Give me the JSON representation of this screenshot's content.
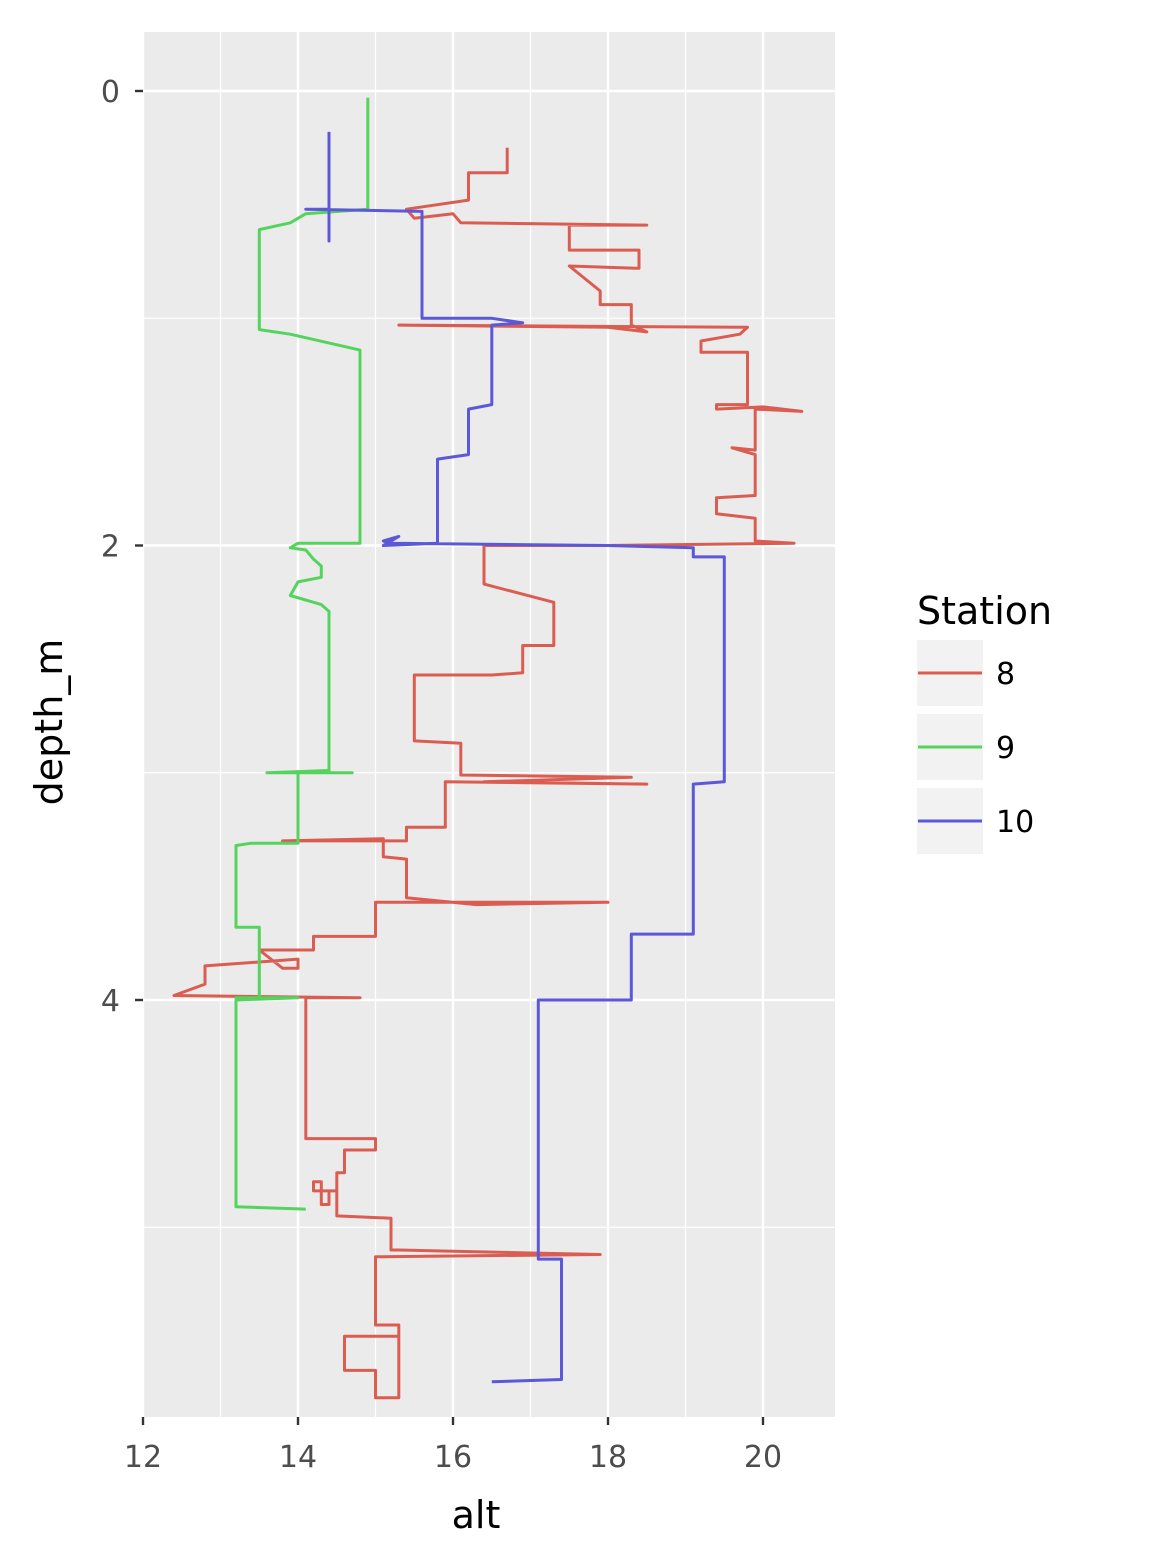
{
  "chart_data": {
    "type": "line",
    "xlabel": "alt",
    "ylabel": "depth_m",
    "xlim": [
      12,
      21
    ],
    "ylim": [
      0,
      5.8
    ],
    "y_reversed": true,
    "x_ticks": [
      12,
      14,
      16,
      18,
      20
    ],
    "y_ticks": [
      0,
      2,
      4
    ],
    "grid": true,
    "legend": {
      "title": "Station",
      "position": "right"
    },
    "series": [
      {
        "name": "8",
        "color": "#db5d52",
        "points": [
          [
            16.7,
            0.25
          ],
          [
            16.7,
            0.36
          ],
          [
            16.2,
            0.36
          ],
          [
            16.2,
            0.48
          ],
          [
            15.4,
            0.52
          ],
          [
            15.5,
            0.56
          ],
          [
            16.0,
            0.54
          ],
          [
            16.1,
            0.58
          ],
          [
            18.5,
            0.59
          ],
          [
            17.5,
            0.59
          ],
          [
            17.5,
            0.7
          ],
          [
            18.4,
            0.7
          ],
          [
            18.4,
            0.78
          ],
          [
            17.5,
            0.77
          ],
          [
            17.9,
            0.88
          ],
          [
            17.9,
            0.94
          ],
          [
            18.3,
            0.94
          ],
          [
            18.3,
            1.03
          ],
          [
            18.5,
            1.06
          ],
          [
            18.0,
            1.04
          ],
          [
            15.3,
            1.03
          ],
          [
            19.8,
            1.04
          ],
          [
            19.7,
            1.07
          ],
          [
            19.2,
            1.1
          ],
          [
            19.2,
            1.15
          ],
          [
            19.8,
            1.15
          ],
          [
            19.8,
            1.38
          ],
          [
            19.4,
            1.38
          ],
          [
            19.4,
            1.4
          ],
          [
            20.0,
            1.39
          ],
          [
            20.5,
            1.41
          ],
          [
            19.9,
            1.4
          ],
          [
            19.9,
            1.58
          ],
          [
            19.6,
            1.57
          ],
          [
            19.9,
            1.6
          ],
          [
            19.9,
            1.78
          ],
          [
            19.4,
            1.79
          ],
          [
            19.4,
            1.86
          ],
          [
            19.9,
            1.88
          ],
          [
            19.9,
            1.98
          ],
          [
            20.4,
            1.99
          ],
          [
            18.0,
            2.0
          ],
          [
            16.4,
            2.0
          ],
          [
            16.4,
            2.17
          ],
          [
            17.3,
            2.25
          ],
          [
            17.3,
            2.44
          ],
          [
            16.9,
            2.44
          ],
          [
            16.9,
            2.56
          ],
          [
            16.5,
            2.57
          ],
          [
            15.5,
            2.57
          ],
          [
            15.5,
            2.86
          ],
          [
            16.1,
            2.87
          ],
          [
            16.1,
            3.01
          ],
          [
            18.3,
            3.02
          ],
          [
            16.4,
            3.04
          ],
          [
            18.5,
            3.05
          ],
          [
            15.9,
            3.04
          ],
          [
            15.9,
            3.24
          ],
          [
            15.4,
            3.24
          ],
          [
            15.4,
            3.3
          ],
          [
            13.8,
            3.3
          ],
          [
            15.1,
            3.29
          ],
          [
            15.1,
            3.37
          ],
          [
            15.4,
            3.38
          ],
          [
            15.4,
            3.55
          ],
          [
            16.3,
            3.58
          ],
          [
            18.0,
            3.57
          ],
          [
            15.0,
            3.57
          ],
          [
            15.0,
            3.72
          ],
          [
            14.2,
            3.72
          ],
          [
            14.2,
            3.78
          ],
          [
            13.5,
            3.78
          ],
          [
            13.8,
            3.86
          ],
          [
            14.0,
            3.86
          ],
          [
            14.0,
            3.82
          ],
          [
            12.8,
            3.85
          ],
          [
            12.8,
            3.93
          ],
          [
            12.4,
            3.98
          ],
          [
            14.8,
            3.99
          ],
          [
            14.1,
            3.99
          ],
          [
            14.1,
            4.61
          ],
          [
            15.0,
            4.61
          ],
          [
            15.0,
            4.66
          ],
          [
            14.6,
            4.66
          ],
          [
            14.6,
            4.76
          ],
          [
            14.5,
            4.76
          ],
          [
            14.5,
            4.84
          ],
          [
            14.4,
            4.84
          ],
          [
            14.4,
            4.9
          ],
          [
            14.3,
            4.9
          ],
          [
            14.3,
            4.8
          ],
          [
            14.2,
            4.8
          ],
          [
            14.2,
            4.84
          ],
          [
            14.5,
            4.84
          ],
          [
            14.5,
            4.95
          ],
          [
            15.2,
            4.96
          ],
          [
            15.2,
            5.1
          ],
          [
            15.3,
            5.1
          ],
          [
            17.9,
            5.12
          ],
          [
            15.0,
            5.13
          ],
          [
            15.0,
            5.43
          ],
          [
            15.3,
            5.43
          ],
          [
            15.3,
            5.48
          ],
          [
            14.6,
            5.48
          ],
          [
            14.6,
            5.63
          ],
          [
            15.0,
            5.63
          ],
          [
            15.0,
            5.75
          ],
          [
            15.3,
            5.75
          ],
          [
            15.3,
            5.48
          ]
        ]
      },
      {
        "name": "9",
        "color": "#55d45d",
        "points": [
          [
            14.9,
            0.03
          ],
          [
            14.9,
            0.52
          ],
          [
            14.1,
            0.54
          ],
          [
            13.9,
            0.58
          ],
          [
            13.5,
            0.61
          ],
          [
            13.5,
            1.05
          ],
          [
            13.9,
            1.07
          ],
          [
            14.8,
            1.14
          ],
          [
            14.8,
            1.99
          ],
          [
            14.0,
            1.99
          ],
          [
            13.9,
            2.01
          ],
          [
            14.1,
            2.02
          ],
          [
            14.2,
            2.06
          ],
          [
            14.3,
            2.09
          ],
          [
            14.3,
            2.14
          ],
          [
            14.0,
            2.16
          ],
          [
            13.9,
            2.22
          ],
          [
            14.3,
            2.26
          ],
          [
            14.4,
            2.29
          ],
          [
            14.4,
            2.99
          ],
          [
            13.6,
            3.0
          ],
          [
            14.7,
            3.0
          ],
          [
            14.0,
            3.0
          ],
          [
            14.0,
            3.31
          ],
          [
            13.4,
            3.31
          ],
          [
            13.2,
            3.32
          ],
          [
            13.2,
            3.68
          ],
          [
            13.5,
            3.68
          ],
          [
            13.5,
            3.99
          ],
          [
            13.2,
            3.99
          ],
          [
            14.0,
            3.99
          ],
          [
            13.2,
            4.0
          ],
          [
            13.2,
            4.91
          ],
          [
            14.1,
            4.92
          ]
        ]
      },
      {
        "name": "10",
        "color": "#5c58d8",
        "points": [
          [
            14.4,
            0.18
          ],
          [
            14.4,
            0.66
          ],
          [
            14.4,
            0.52
          ],
          [
            14.1,
            0.52
          ],
          [
            15.6,
            0.53
          ],
          [
            15.6,
            1.0
          ],
          [
            16.5,
            1.0
          ],
          [
            16.9,
            1.02
          ],
          [
            16.5,
            1.03
          ],
          [
            16.5,
            1.38
          ],
          [
            16.2,
            1.4
          ],
          [
            16.2,
            1.6
          ],
          [
            15.8,
            1.62
          ],
          [
            15.8,
            1.99
          ],
          [
            15.1,
            2.0
          ],
          [
            15.3,
            1.96
          ],
          [
            15.1,
            1.98
          ],
          [
            15.2,
            1.99
          ],
          [
            18.0,
            2.0
          ],
          [
            19.1,
            2.01
          ],
          [
            19.1,
            2.05
          ],
          [
            19.5,
            2.05
          ],
          [
            19.5,
            3.04
          ],
          [
            19.1,
            3.05
          ],
          [
            19.1,
            3.71
          ],
          [
            18.3,
            3.71
          ],
          [
            18.3,
            4.0
          ],
          [
            17.1,
            4.0
          ],
          [
            17.1,
            5.14
          ],
          [
            17.4,
            5.14
          ],
          [
            17.4,
            5.67
          ],
          [
            16.5,
            5.68
          ]
        ]
      }
    ]
  }
}
